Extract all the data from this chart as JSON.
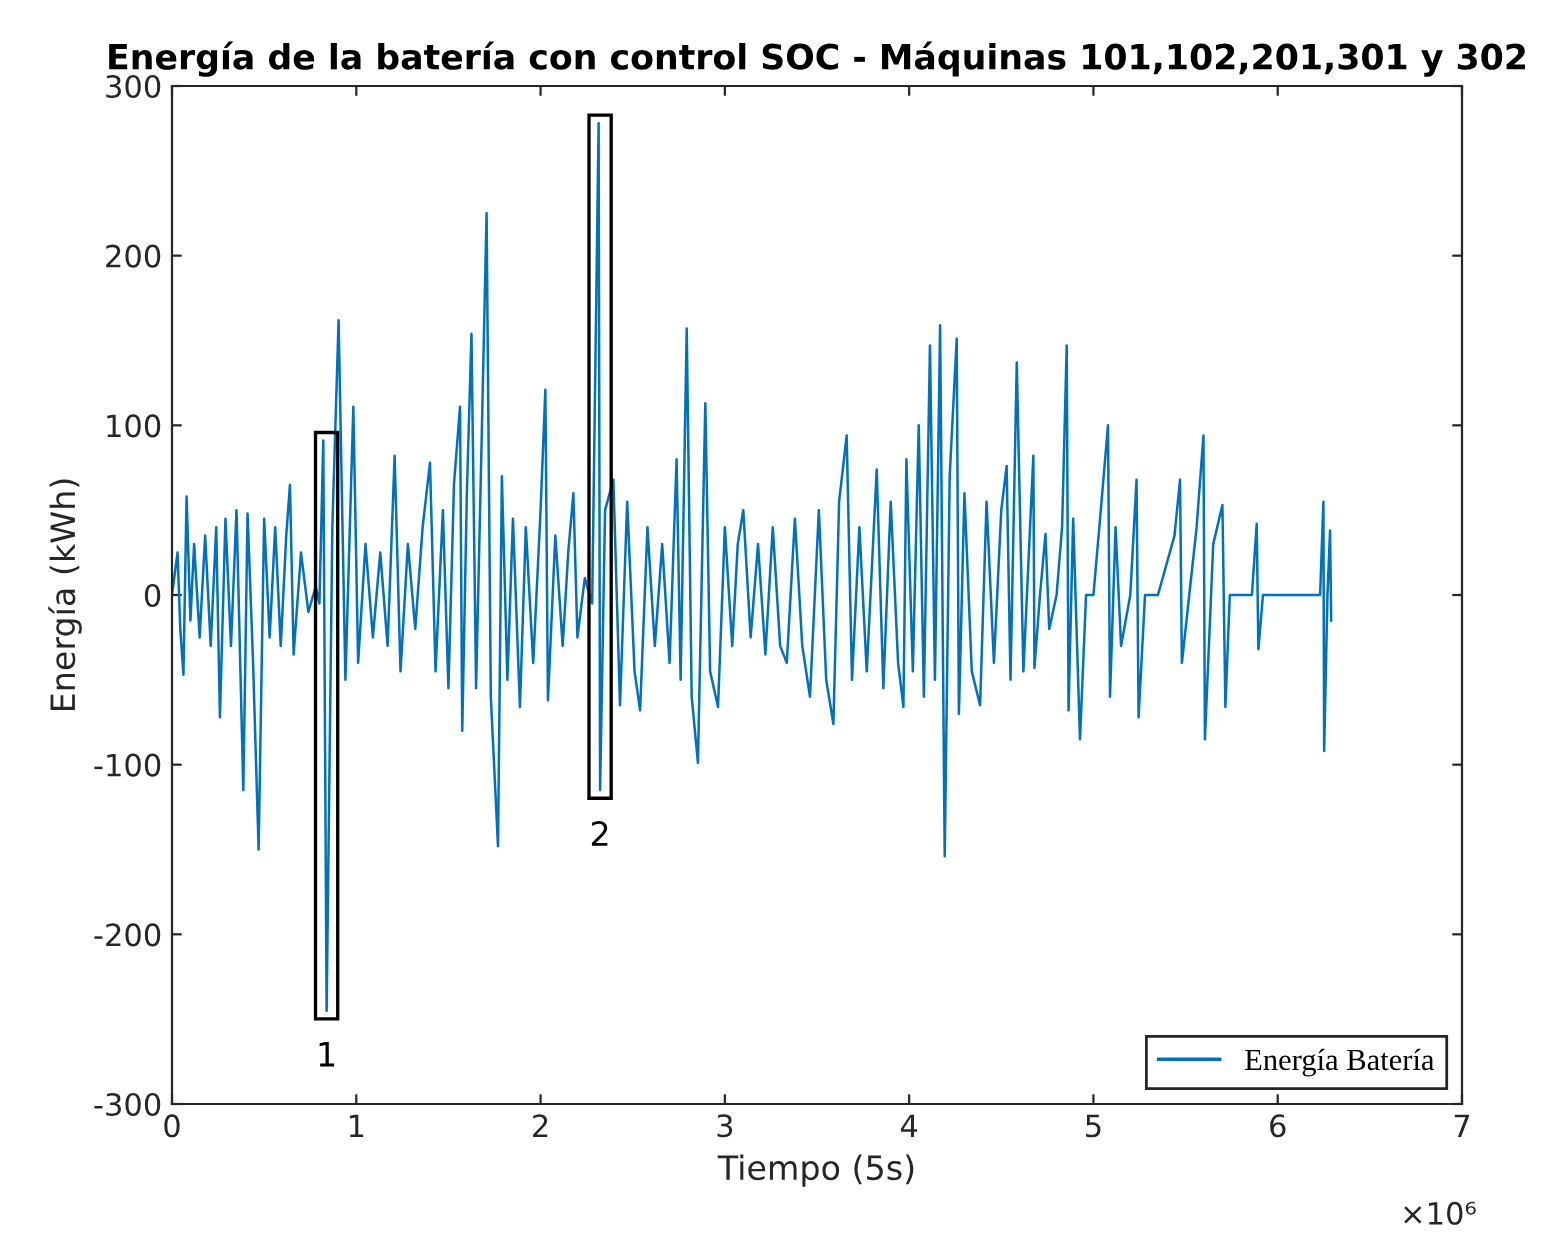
{
  "chart_data": {
    "type": "line",
    "title": "Energía de la batería con control SOC - Máquinas 101,102,201,301 y 302",
    "xlabel": "Tiempo (5s)",
    "ylabel": "Energía (kWh)",
    "x": [
      0,
      0.03,
      0.045,
      0.062,
      0.079,
      0.1,
      0.12,
      0.15,
      0.18,
      0.21,
      0.24,
      0.26,
      0.29,
      0.32,
      0.35,
      0.387,
      0.41,
      0.44,
      0.47,
      0.5,
      0.53,
      0.56,
      0.59,
      0.62,
      0.64,
      0.66,
      0.7,
      0.74,
      0.78,
      0.8,
      0.821,
      0.839,
      0.87,
      0.904,
      0.941,
      0.984,
      1.01,
      1.05,
      1.09,
      1.13,
      1.17,
      1.208,
      1.24,
      1.28,
      1.32,
      1.36,
      1.4,
      1.43,
      1.47,
      1.5,
      1.53,
      1.563,
      1.575,
      1.6,
      1.625,
      1.65,
      1.68,
      1.707,
      1.73,
      1.769,
      1.79,
      1.82,
      1.85,
      1.888,
      1.92,
      1.96,
      2.0,
      2.026,
      2.04,
      2.08,
      2.12,
      2.15,
      2.178,
      2.2,
      2.24,
      2.28,
      2.315,
      2.323,
      2.35,
      2.395,
      2.431,
      2.47,
      2.51,
      2.54,
      2.58,
      2.62,
      2.66,
      2.7,
      2.738,
      2.76,
      2.793,
      2.82,
      2.854,
      2.894,
      2.92,
      2.963,
      3.0,
      3.04,
      3.07,
      3.1,
      3.14,
      3.18,
      3.22,
      3.26,
      3.3,
      3.336,
      3.38,
      3.42,
      3.462,
      3.51,
      3.55,
      3.589,
      3.62,
      3.661,
      3.69,
      3.73,
      3.77,
      3.824,
      3.86,
      3.9,
      3.94,
      3.969,
      3.985,
      4.02,
      4.052,
      4.08,
      4.113,
      4.14,
      4.168,
      4.193,
      4.22,
      4.258,
      4.27,
      4.3,
      4.34,
      4.385,
      4.42,
      4.46,
      4.5,
      4.529,
      4.55,
      4.584,
      4.62,
      4.674,
      4.68,
      4.71,
      4.74,
      4.76,
      4.8,
      4.83,
      4.855,
      4.865,
      4.89,
      4.927,
      4.96,
      5.0,
      5.04,
      5.079,
      5.09,
      5.12,
      5.15,
      5.2,
      5.234,
      5.245,
      5.28,
      5.35,
      5.44,
      5.47,
      5.48,
      5.52,
      5.56,
      5.597,
      5.605,
      5.65,
      5.7,
      5.716,
      5.74,
      5.86,
      5.886,
      5.895,
      5.92,
      6.23,
      6.248,
      6.252,
      6.27,
      6.284,
      6.29
    ],
    "series": [
      {
        "name": "Energía Batería",
        "color": "#0072bd",
        "values": [
          0,
          25,
          -20,
          -47,
          58,
          -15,
          30,
          -25,
          35,
          -30,
          40,
          -72,
          45,
          -30,
          50,
          -115,
          48,
          -40,
          -150,
          45,
          -25,
          40,
          -30,
          35,
          65,
          -35,
          25,
          -10,
          5,
          -5,
          91,
          -245,
          40,
          162,
          -50,
          111,
          -40,
          30,
          -25,
          25,
          -30,
          82,
          -45,
          30,
          -20,
          40,
          78,
          -45,
          50,
          -55,
          65,
          111,
          -80,
          60,
          154,
          -55,
          90,
          225,
          -60,
          -148,
          70,
          -50,
          45,
          -66,
          40,
          -40,
          50,
          121,
          -62,
          35,
          -30,
          25,
          60,
          -25,
          10,
          -5,
          278,
          -115,
          50,
          68,
          -65,
          55,
          -45,
          -68,
          40,
          -30,
          30,
          -40,
          80,
          -50,
          157,
          -60,
          -99,
          113,
          -45,
          -66,
          40,
          -30,
          30,
          50,
          -25,
          30,
          -35,
          40,
          -30,
          -40,
          45,
          -30,
          -60,
          50,
          -50,
          -76,
          55,
          94,
          -50,
          40,
          -45,
          74,
          -55,
          55,
          -40,
          -66,
          80,
          -45,
          100,
          -60,
          147,
          -50,
          159,
          -154,
          70,
          151,
          -70,
          60,
          -45,
          -65,
          55,
          -40,
          50,
          76,
          -50,
          137,
          -45,
          82,
          -43,
          0,
          36,
          -20,
          0,
          40,
          147,
          -68,
          45,
          -85,
          0,
          0,
          50,
          100,
          -60,
          40,
          -30,
          0,
          68,
          -72,
          0,
          0,
          35,
          68,
          -40,
          0,
          40,
          94,
          -85,
          30,
          53,
          -66,
          0,
          0,
          42,
          -32,
          0,
          0,
          55,
          -92,
          0,
          38,
          -15
        ]
      }
    ],
    "xlim": [
      0,
      7
    ],
    "xticks": [
      0,
      1,
      2,
      3,
      4,
      5,
      6,
      7
    ],
    "ylim": [
      -300,
      300
    ],
    "yticks": [
      -300,
      -200,
      -100,
      0,
      100,
      200,
      300
    ],
    "annotations": [
      {
        "text": "1",
        "x": 0.839,
        "y": -245
      },
      {
        "text": "2",
        "x": 2.323,
        "y": -115
      },
      "×10⁶"
    ],
    "legend": "bottom right",
    "grid": false,
    "marker": "none",
    "line_style": "solid"
  }
}
